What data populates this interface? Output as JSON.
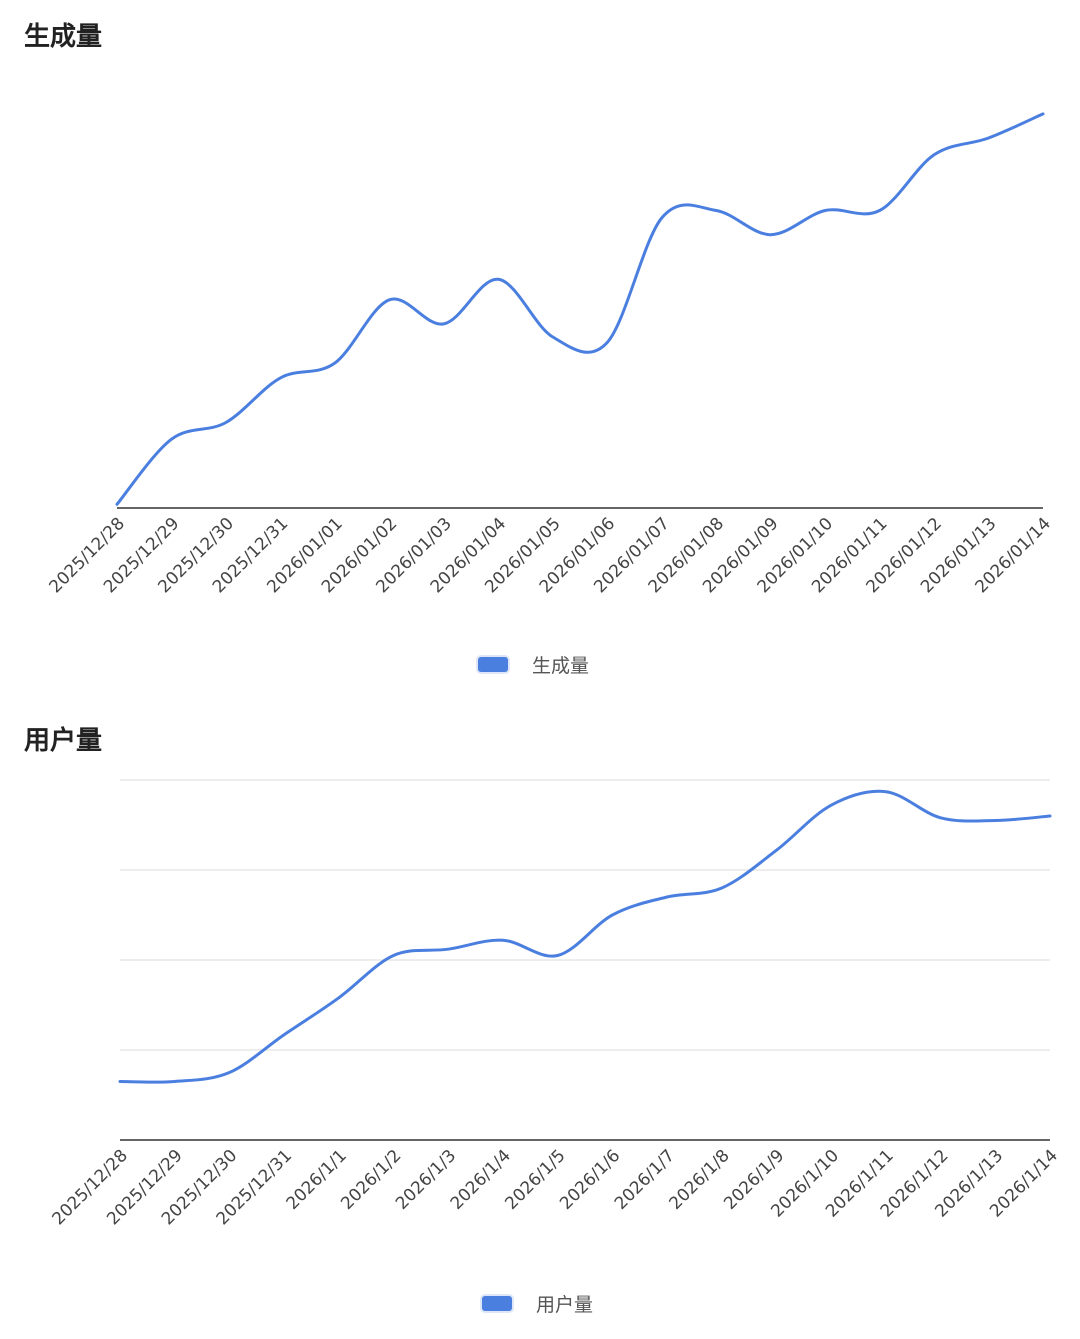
{
  "colors": {
    "series": "#4a7fe0",
    "axis": "#666666",
    "grid": "#e2e2e2",
    "text": "#444444"
  },
  "chart_data": [
    {
      "type": "line",
      "title": "生成量",
      "categories": [
        "2025/12/28",
        "2025/12/29",
        "2025/12/30",
        "2025/12/31",
        "2026/01/01",
        "2026/01/02",
        "2026/01/03",
        "2026/01/04",
        "2026/01/05",
        "2026/01/06",
        "2026/01/07",
        "2026/01/08",
        "2026/01/09",
        "2026/01/10",
        "2026/01/11",
        "2026/01/12",
        "2026/01/13",
        "2026/01/14"
      ],
      "series": [
        {
          "name": "生成量",
          "values": [
            1,
            18.5,
            23,
            35,
            39,
            56,
            49.5,
            61.5,
            46,
            44.5,
            78,
            80,
            73.5,
            80,
            80,
            95,
            99.5,
            106
          ]
        }
      ],
      "ylim": [
        0,
        110
      ],
      "y_axis_labels": false,
      "grid": false,
      "legend": "bottom-center"
    },
    {
      "type": "line",
      "title": "用户量",
      "categories": [
        "2025/12/28",
        "2025/12/29",
        "2025/12/30",
        "2025/12/31",
        "2026/1/1",
        "2026/1/2",
        "2026/1/3",
        "2026/1/4",
        "2026/1/5",
        "2026/1/6",
        "2026/1/7",
        "2026/1/8",
        "2026/1/9",
        "2026/1/10",
        "2026/1/11",
        "2026/1/12",
        "2026/1/13",
        "2026/1/14"
      ],
      "series": [
        {
          "name": "用户量",
          "values": [
            0.65,
            0.65,
            0.75,
            1.17,
            1.58,
            2.05,
            2.12,
            2.22,
            2.05,
            2.5,
            2.7,
            2.8,
            3.22,
            3.72,
            3.87,
            3.58,
            3.55,
            3.6
          ]
        }
      ],
      "ylim": [
        0,
        4
      ],
      "y_axis_labels": false,
      "grid": true,
      "legend": "bottom-center"
    }
  ]
}
